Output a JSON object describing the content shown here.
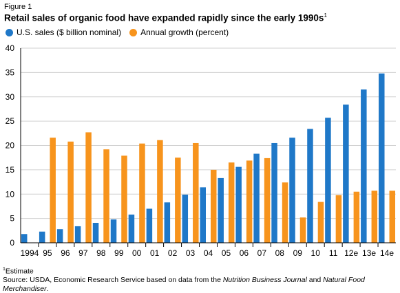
{
  "figure_label": "Figure 1",
  "title": "Retail sales of organic food have expanded rapidly since the early 1990s",
  "title_superscript": "1",
  "footnote": {
    "estimate_marker": "1",
    "estimate_text": "Estimate",
    "source_prefix": "Source: USDA, Economic Research Service based on data from the ",
    "source_italic_1": "Nutrition Business Journal",
    "source_mid": " and ",
    "source_italic_2": "Natural Food Merchandiser",
    "source_suffix": "."
  },
  "colors": {
    "sales": "#1f78c8",
    "growth": "#f7941d",
    "grid": "#d0d0d0"
  },
  "chart_data": {
    "type": "bar",
    "categories": [
      "1994",
      "95",
      "96",
      "97",
      "98",
      "99",
      "00",
      "01",
      "02",
      "03",
      "04",
      "05",
      "06",
      "07",
      "08",
      "09",
      "10",
      "11",
      "12e",
      "13e",
      "14e"
    ],
    "series": [
      {
        "name": "U.S. sales ($ billion nominal)",
        "values": [
          1.8,
          2.3,
          2.8,
          3.4,
          4.1,
          4.8,
          5.8,
          7.0,
          8.3,
          9.9,
          11.4,
          13.3,
          15.6,
          18.3,
          20.5,
          21.6,
          23.4,
          25.7,
          28.4,
          31.5,
          34.8
        ]
      },
      {
        "name": "Annual growth (percent)",
        "values": [
          null,
          21.6,
          20.8,
          22.7,
          19.2,
          17.9,
          20.4,
          21.1,
          17.5,
          20.5,
          15.0,
          16.5,
          16.9,
          17.4,
          12.4,
          5.2,
          8.4,
          9.8,
          10.5,
          10.7,
          10.7
        ]
      }
    ],
    "ylim": [
      0,
      40
    ],
    "yticks": [
      "0",
      "5",
      "10",
      "15",
      "20",
      "25",
      "30",
      "35",
      "40"
    ],
    "grid": true,
    "legend_position": "top-left"
  }
}
